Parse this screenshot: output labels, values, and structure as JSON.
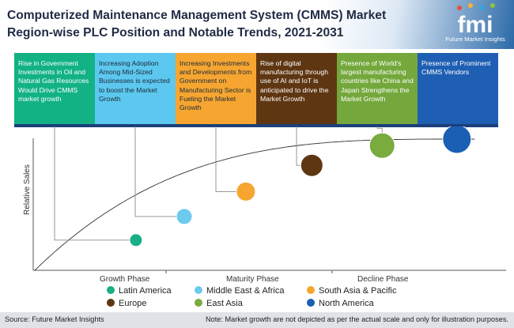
{
  "header": {
    "title_line1": "Computerized Maintenance Management System (CMMS) Market",
    "title_line2": "Region-wise PLC Position and Notable Trends, 2021-2031"
  },
  "brand": {
    "logo_text": "fmi",
    "name": "Future Market Insights",
    "colors": [
      "#e94e3c",
      "#f9b233",
      "#2ba8e0",
      "#8cc63f"
    ]
  },
  "trends": [
    {
      "text": "Rise in Government Investments in Oil and Natural Gas Resources Would Drive CMMS market growth",
      "color": "#12b285",
      "text_color": "#ffffff"
    },
    {
      "text": "Increasing Adoption Among Mid-Sized Businesses is expected to boost the Market Growth",
      "color": "#5cc8ef",
      "text_color": "#1e2a3a"
    },
    {
      "text": "Increasing Investments and Developments from Government on Manufacturing Sector is Fueling the Market Growth",
      "color": "#f6a630",
      "text_color": "#1e2a3a"
    },
    {
      "text": "Rise of digital manufacturing through use of AI and IoT is anticipated to drive the Market Growth",
      "color": "#5f3612",
      "text_color": "#ffffff"
    },
    {
      "text": "Presence of World's largest manufacturing countries like China and Japan Strengthens the Market Growth",
      "color": "#74a83c",
      "text_color": "#ffffff"
    },
    {
      "text": "Presence of Prominent CMMS Vendors",
      "color": "#1f5fb3",
      "text_color": "#ffffff"
    }
  ],
  "chart_data": {
    "type": "scatter",
    "title": "",
    "xlabel": "",
    "ylabel": "Relative Sales",
    "phases": [
      "Growth Phase",
      "Maturity Phase",
      "Decline Phase"
    ],
    "curve": "plc",
    "points": [
      {
        "name": "Latin America",
        "color": "#1aaf86",
        "position": 0.23,
        "relative_sales": 0.23,
        "bubble_size": 1
      },
      {
        "name": "Middle East & Africa",
        "color": "#6ccbee",
        "position": 0.34,
        "relative_sales": 0.41,
        "bubble_size": 1.5
      },
      {
        "name": "South Asia & Pacific",
        "color": "#f6a630",
        "position": 0.48,
        "relative_sales": 0.6,
        "bubble_size": 2
      },
      {
        "name": "Europe",
        "color": "#5f3612",
        "position": 0.63,
        "relative_sales": 0.8,
        "bubble_size": 2.5
      },
      {
        "name": "East Asia",
        "color": "#79ab3f",
        "position": 0.79,
        "relative_sales": 0.95,
        "bubble_size": 3
      },
      {
        "name": "North America",
        "color": "#1a5fb4",
        "position": 0.96,
        "relative_sales": 1.0,
        "bubble_size": 3.5
      }
    ],
    "legend_rows": [
      [
        "Latin America",
        "Middle East & Africa",
        "South Asia & Pacific"
      ],
      [
        "Europe",
        "East Asia",
        "North America"
      ]
    ]
  },
  "footer": {
    "source": "Source: Future Market Insights",
    "note": "Note: Market growth are not depicted as per the actual scale and only for illustration purposes."
  }
}
